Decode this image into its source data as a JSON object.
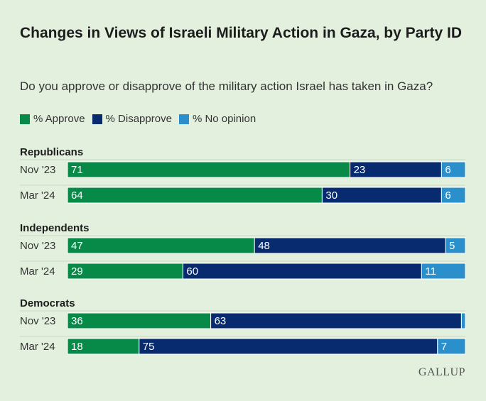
{
  "chart_data": {
    "type": "bar",
    "stacked": true,
    "orientation": "horizontal",
    "title": "Changes in Views of Israeli Military Action in Gaza, by Party ID",
    "subtitle": "Do you approve or disapprove of the military action Israel has taken in Gaza?",
    "legend": [
      {
        "name": "% Approve",
        "color": "#078a48"
      },
      {
        "name": "% Disapprove",
        "color": "#072b6e"
      },
      {
        "name": "% No opinion",
        "color": "#2a8fca"
      }
    ],
    "groups": [
      {
        "label": "Republicans",
        "rows": [
          {
            "label": "Nov '23",
            "values": [
              71,
              23,
              6
            ]
          },
          {
            "label": "Mar '24",
            "values": [
              64,
              30,
              6
            ]
          }
        ]
      },
      {
        "label": "Independents",
        "rows": [
          {
            "label": "Nov '23",
            "values": [
              47,
              48,
              5
            ]
          },
          {
            "label": "Mar '24",
            "values": [
              29,
              60,
              11
            ]
          }
        ]
      },
      {
        "label": "Democrats",
        "rows": [
          {
            "label": "Nov '23",
            "values": [
              36,
              63,
              1
            ]
          },
          {
            "label": "Mar '24",
            "values": [
              18,
              75,
              7
            ]
          }
        ]
      }
    ],
    "value_labels_hidden": [
      {
        "group": 2,
        "row": 0,
        "segment": 2
      }
    ]
  },
  "source_logo": "GALLUP"
}
